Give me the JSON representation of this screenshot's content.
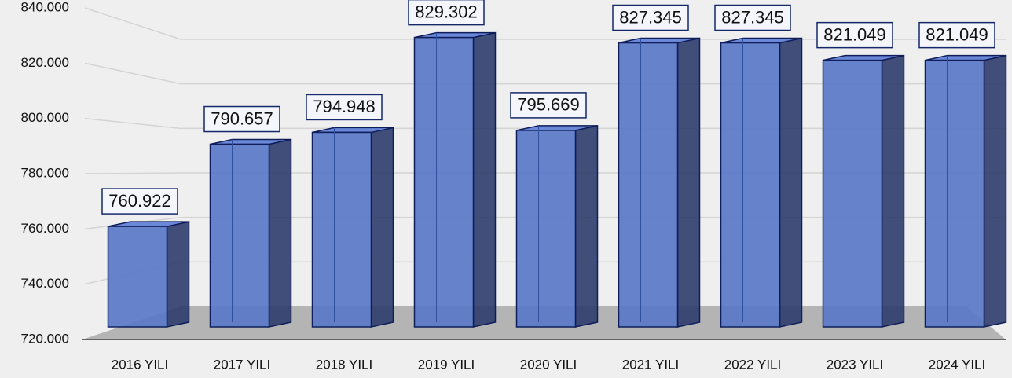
{
  "chart_data": {
    "type": "bar",
    "categories": [
      "2016 YILI",
      "2017 YILI",
      "2018 YILI",
      "2019 YILI",
      "2020 YILI",
      "2021 YILI",
      "2022 YILI",
      "2023 YILI",
      "2024 YILI"
    ],
    "values": [
      760922,
      790657,
      794948,
      829302,
      795669,
      827345,
      827345,
      821049,
      821049
    ],
    "value_labels": [
      "760.922",
      "790.657",
      "794.948",
      "829.302",
      "795.669",
      "827.345",
      "827.345",
      "821.049",
      "821.049"
    ],
    "color": "#5a78c8",
    "ylim": [
      720000,
      840000
    ],
    "yticks": [
      {
        "value": 720000,
        "label": "720.000"
      },
      {
        "value": 740000,
        "label": "740.000"
      },
      {
        "value": 760000,
        "label": "760.000"
      },
      {
        "value": 780000,
        "label": "780.000"
      },
      {
        "value": 800000,
        "label": "800.000"
      },
      {
        "value": 820000,
        "label": "820.000"
      },
      {
        "value": 840000,
        "label": "840.000"
      }
    ],
    "grid": true
  }
}
